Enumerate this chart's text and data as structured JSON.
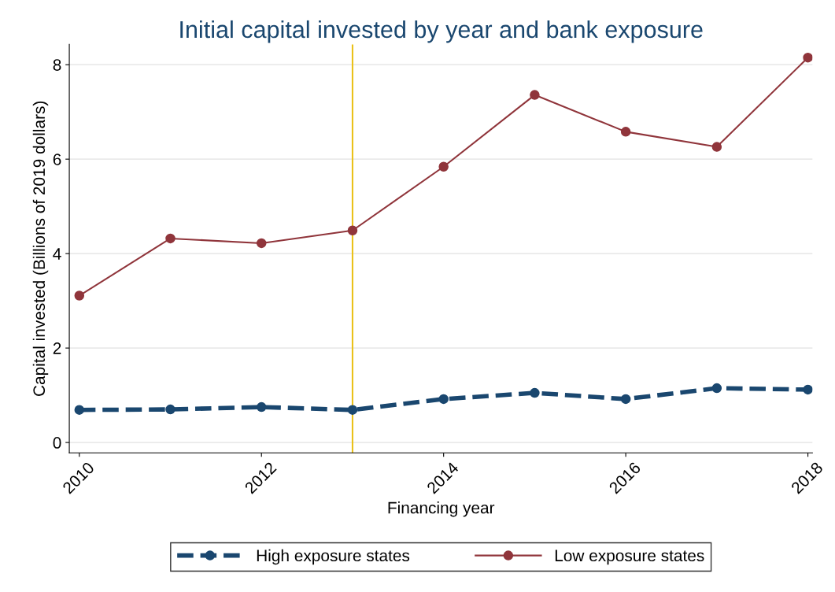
{
  "chart_data": {
    "type": "line",
    "title": "Initial capital invested by year and bank exposure",
    "xlabel": "Financing year",
    "ylabel": "Capital invested (Billions of 2019 dollars)",
    "x": [
      2010,
      2011,
      2012,
      2013,
      2014,
      2015,
      2016,
      2017,
      2018
    ],
    "series": [
      {
        "name": "High exposure states",
        "color": "#1a476f",
        "line_style": "dashed",
        "values": [
          0.69,
          0.7,
          0.75,
          0.69,
          0.92,
          1.05,
          0.92,
          1.15,
          1.12
        ]
      },
      {
        "name": "Low exposure states",
        "color": "#90353b",
        "line_style": "solid",
        "values": [
          3.11,
          4.32,
          4.22,
          4.49,
          5.84,
          7.36,
          6.58,
          6.26,
          8.15
        ]
      }
    ],
    "marker": "circle",
    "xlim": [
      2009.89,
      2018.05
    ],
    "xticks": [
      2010,
      2012,
      2014,
      2016,
      2018
    ],
    "ylim": [
      -0.22,
      8.43
    ],
    "yticks": [
      0,
      2,
      4,
      6,
      8
    ],
    "ref_lines": [
      {
        "axis": "x",
        "value": 2013,
        "label": null,
        "color": "#eac11a",
        "line_style": "solid"
      }
    ],
    "grid": "y",
    "legend": "bottom"
  }
}
